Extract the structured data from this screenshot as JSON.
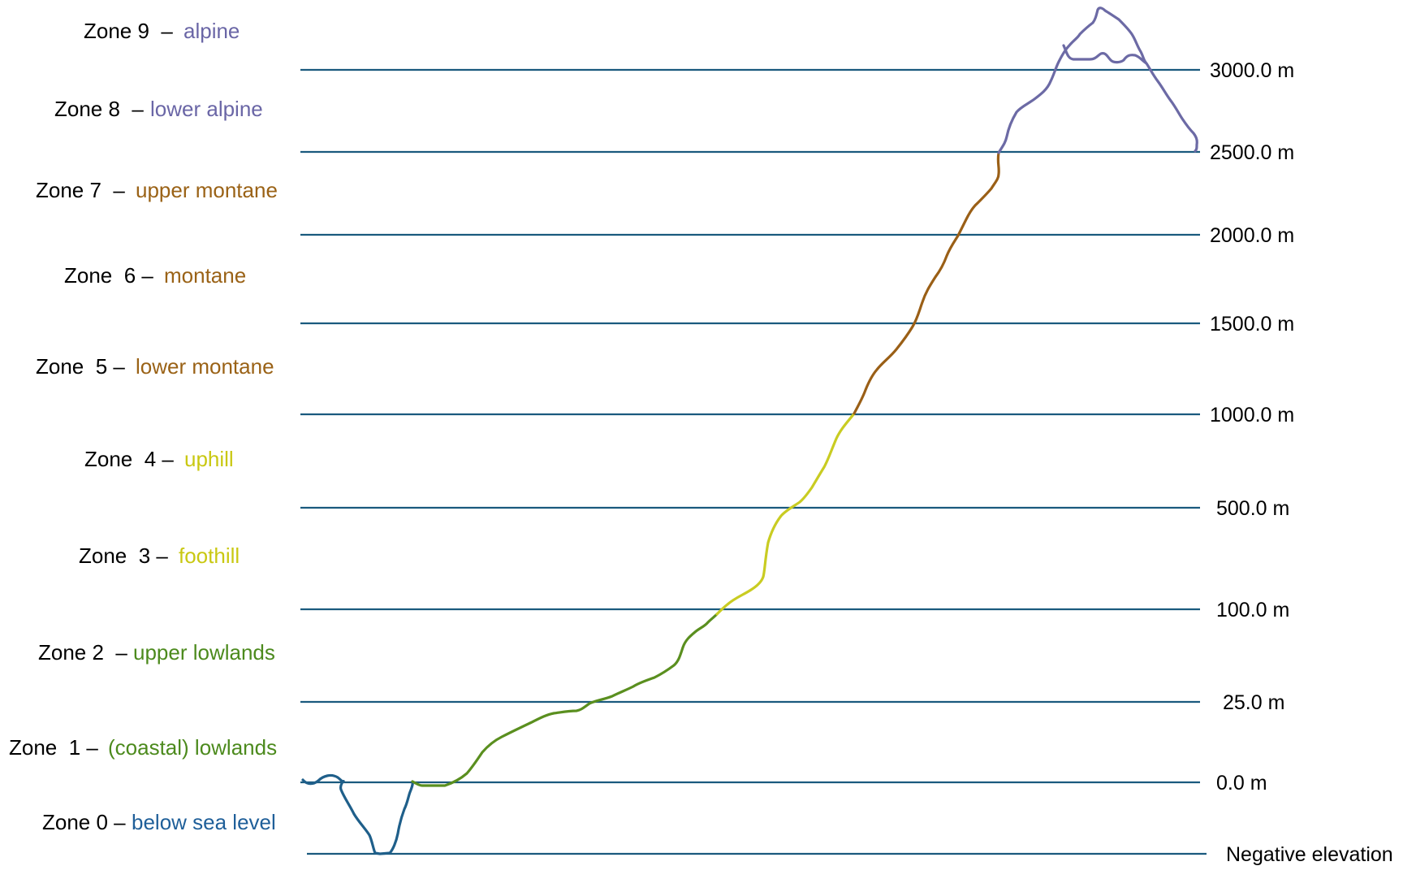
{
  "colors": {
    "line": "#1a5a7e",
    "background": "#ffffff",
    "zone_names": {
      "blue": "#1f5f99",
      "green": "#4c8a1d",
      "yellow": "#c9c812",
      "brown": "#9a6216",
      "purple": "#6a66a6"
    },
    "profile": {
      "sea": "#1f5f8a",
      "lowland": "#5a8f1f",
      "hill": "#c9cc22",
      "montane": "#9a5f16",
      "alpine": "#6c6aa5"
    }
  },
  "zones": [
    {
      "id": "zone-9",
      "prefix": "Zone 9  –",
      "name": "alpine",
      "color": "purple"
    },
    {
      "id": "zone-8",
      "prefix": "Zone 8  –",
      "name": "lower alpine",
      "color": "purple"
    },
    {
      "id": "zone-7",
      "prefix": "Zone 7  –",
      "name": "upper montane",
      "color": "brown"
    },
    {
      "id": "zone-6",
      "prefix": "Zone  6 –",
      "name": "montane",
      "color": "brown"
    },
    {
      "id": "zone-5",
      "prefix": "Zone  5 –",
      "name": "lower montane",
      "color": "brown"
    },
    {
      "id": "zone-4",
      "prefix": "Zone  4 –",
      "name": "uphill",
      "color": "yellow"
    },
    {
      "id": "zone-3",
      "prefix": "Zone  3 –",
      "name": "foothill",
      "color": "yellow"
    },
    {
      "id": "zone-2",
      "prefix": "Zone 2  –",
      "name": "upper lowlands",
      "color": "green"
    },
    {
      "id": "zone-1",
      "prefix": "Zone  1 –",
      "name": "(coastal) lowlands",
      "color": "green"
    },
    {
      "id": "zone-0",
      "prefix": "Zone 0 –",
      "name": "below sea level",
      "color": "blue"
    }
  ],
  "boundaries": [
    {
      "id": "3000",
      "label": "3000.0 m"
    },
    {
      "id": "2500",
      "label": "2500.0 m"
    },
    {
      "id": "2000",
      "label": "2000.0 m"
    },
    {
      "id": "1500",
      "label": "1500.0 m"
    },
    {
      "id": "1000",
      "label": "1000.0 m"
    },
    {
      "id": "500",
      "label": "500.0 m"
    },
    {
      "id": "100",
      "label": "100.0 m"
    },
    {
      "id": "25",
      "label": "25.0 m"
    },
    {
      "id": "0",
      "label": "0.0 m"
    },
    {
      "id": "negative",
      "label": "Negative elevation"
    }
  ]
}
